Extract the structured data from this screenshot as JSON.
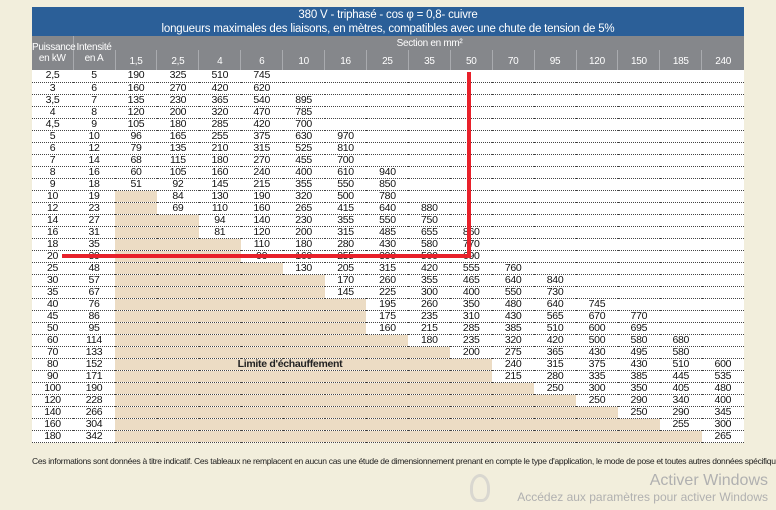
{
  "title": {
    "line1": "380 V - triphasé - cos φ  = 0,8- cuivre",
    "line2": "longueurs maximales des liaisons, en mètres, compatibles avec une chute de tension de 5%"
  },
  "headers": {
    "power": "Puissance en kW",
    "current": "Intensité en A",
    "section": "Section en mm²",
    "sections": [
      "1,5",
      "2,5",
      "4",
      "6",
      "10",
      "16",
      "25",
      "35",
      "50",
      "70",
      "95",
      "120",
      "150",
      "185",
      "240"
    ]
  },
  "rows": [
    [
      "2,5",
      "5",
      [
        "190",
        "325",
        "510",
        "745"
      ]
    ],
    [
      "3",
      "6",
      [
        "160",
        "270",
        "420",
        "620"
      ]
    ],
    [
      "3,5",
      "7",
      [
        "135",
        "230",
        "365",
        "540",
        "895"
      ]
    ],
    [
      "4",
      "8",
      [
        "120",
        "200",
        "320",
        "470",
        "785"
      ]
    ],
    [
      "4,5",
      "9",
      [
        "105",
        "180",
        "285",
        "420",
        "700"
      ]
    ],
    [
      "5",
      "10",
      [
        "96",
        "165",
        "255",
        "375",
        "630",
        "970"
      ]
    ],
    [
      "6",
      "12",
      [
        "79",
        "135",
        "210",
        "315",
        "525",
        "810"
      ]
    ],
    [
      "7",
      "14",
      [
        "68",
        "115",
        "180",
        "270",
        "455",
        "700"
      ]
    ],
    [
      "8",
      "16",
      [
        "60",
        "105",
        "160",
        "240",
        "400",
        "610",
        "940"
      ]
    ],
    [
      "9",
      "18",
      [
        "51",
        "92",
        "145",
        "215",
        "355",
        "550",
        "850"
      ]
    ],
    [
      "10",
      "19",
      [
        null,
        "84",
        "130",
        "190",
        "320",
        "500",
        "780"
      ]
    ],
    [
      "12",
      "23",
      [
        null,
        "69",
        "110",
        "160",
        "265",
        "415",
        "640",
        "880"
      ]
    ],
    [
      "14",
      "27",
      [
        null,
        null,
        "94",
        "140",
        "230",
        "355",
        "550",
        "750"
      ]
    ],
    [
      "16",
      "31",
      [
        null,
        null,
        "81",
        "120",
        "200",
        "315",
        "485",
        "655",
        "860"
      ]
    ],
    [
      "18",
      "35",
      [
        null,
        null,
        null,
        "110",
        "180",
        "280",
        "430",
        "580",
        "770"
      ]
    ],
    [
      "20",
      "39",
      [
        null,
        null,
        null,
        "99",
        "160",
        "255",
        "390",
        "500",
        "690"
      ]
    ],
    [
      "25",
      "48",
      [
        null,
        null,
        null,
        null,
        "130",
        "205",
        "315",
        "420",
        "555",
        "760"
      ]
    ],
    [
      "30",
      "57",
      [
        null,
        null,
        null,
        null,
        null,
        "170",
        "260",
        "355",
        "465",
        "640",
        "840"
      ]
    ],
    [
      "35",
      "67",
      [
        null,
        null,
        null,
        null,
        null,
        "145",
        "225",
        "300",
        "400",
        "550",
        "730"
      ]
    ],
    [
      "40",
      "76",
      [
        null,
        null,
        null,
        null,
        null,
        null,
        "195",
        "260",
        "350",
        "480",
        "640",
        "745"
      ]
    ],
    [
      "45",
      "86",
      [
        null,
        null,
        null,
        null,
        null,
        null,
        "175",
        "235",
        "310",
        "430",
        "565",
        "670",
        "770"
      ]
    ],
    [
      "50",
      "95",
      [
        null,
        null,
        null,
        null,
        null,
        null,
        "160",
        "215",
        "285",
        "385",
        "510",
        "600",
        "695"
      ]
    ],
    [
      "60",
      "114",
      [
        null,
        null,
        null,
        null,
        null,
        null,
        null,
        "180",
        "235",
        "320",
        "420",
        "500",
        "580",
        "680"
      ]
    ],
    [
      "70",
      "133",
      [
        null,
        null,
        null,
        null,
        null,
        null,
        null,
        null,
        "200",
        "275",
        "365",
        "430",
        "495",
        "580"
      ]
    ],
    [
      "80",
      "152",
      [
        null,
        null,
        null,
        null,
        null,
        null,
        null,
        null,
        null,
        "240",
        "315",
        "375",
        "430",
        "510",
        "600"
      ]
    ],
    [
      "90",
      "171",
      [
        null,
        null,
        null,
        null,
        null,
        null,
        null,
        null,
        null,
        "215",
        "280",
        "335",
        "385",
        "445",
        "535"
      ]
    ],
    [
      "100",
      "190",
      [
        null,
        null,
        null,
        null,
        null,
        null,
        null,
        null,
        null,
        null,
        "250",
        "300",
        "350",
        "405",
        "480"
      ]
    ],
    [
      "120",
      "228",
      [
        null,
        null,
        null,
        null,
        null,
        null,
        null,
        null,
        null,
        null,
        null,
        "250",
        "290",
        "340",
        "400"
      ]
    ],
    [
      "140",
      "266",
      [
        null,
        null,
        null,
        null,
        null,
        null,
        null,
        null,
        null,
        null,
        null,
        null,
        "250",
        "290",
        "345"
      ]
    ],
    [
      "160",
      "304",
      [
        null,
        null,
        null,
        null,
        null,
        null,
        null,
        null,
        null,
        null,
        null,
        null,
        null,
        "255",
        "300"
      ]
    ],
    [
      "180",
      "342",
      [
        null,
        null,
        null,
        null,
        null,
        null,
        null,
        null,
        null,
        null,
        null,
        null,
        null,
        null,
        "265"
      ]
    ]
  ],
  "limit_label": "Limite d'échauffement",
  "footnote": "Ces informations sont données à titre indicatif. Ces tableaux ne remplacent en aucun cas une étude de dimensionnement prenant en compte le type d'application, le mode de pose et toutes autres données spécifiques.",
  "watermark": {
    "line1": "Activer Windows",
    "line2": "Accédez aux paramètres pour activer Windows"
  },
  "colors": {
    "title_bg": "#2b5f98",
    "header_bg": "#85878b",
    "shade": "#ecdcc4",
    "annotation": "#e8202a"
  }
}
